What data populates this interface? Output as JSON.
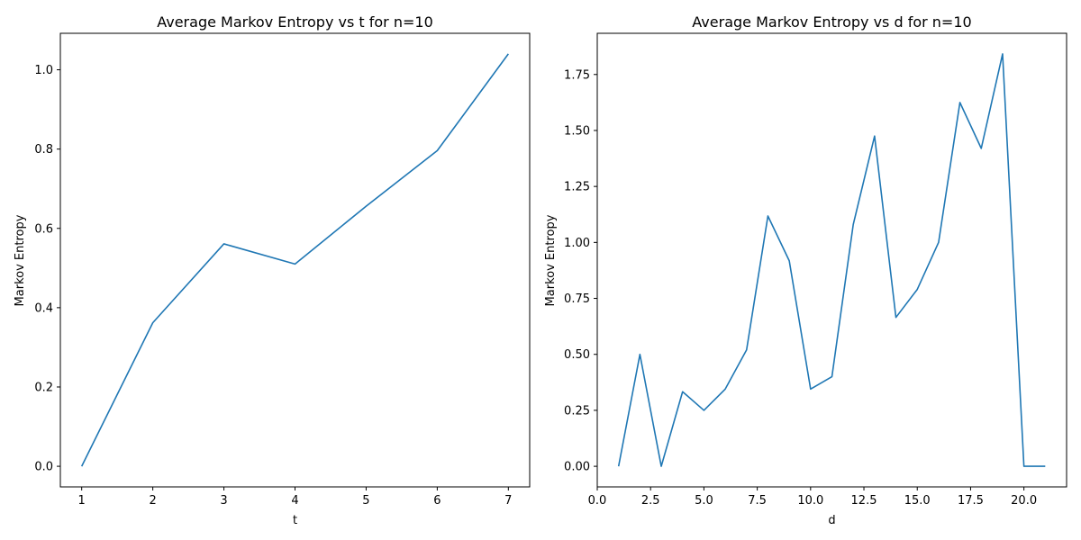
{
  "colors": {
    "series": "#1f77b4",
    "axes": "#000000",
    "background": "#ffffff"
  },
  "chart_data": [
    {
      "type": "line",
      "title": "Average Markov Entropy vs t for n=10",
      "xlabel": "t",
      "ylabel": "Markov Entropy",
      "xlim": [
        0.7,
        7.3
      ],
      "ylim": [
        -0.052,
        1.092
      ],
      "xticks": [
        1,
        2,
        3,
        4,
        5,
        6,
        7
      ],
      "xtick_labels": [
        "1",
        "2",
        "3",
        "4",
        "5",
        "6",
        "7"
      ],
      "yticks": [
        0.0,
        0.2,
        0.4,
        0.6,
        0.8,
        1.0
      ],
      "ytick_labels": [
        "0.0",
        "0.2",
        "0.4",
        "0.6",
        "0.8",
        "1.0"
      ],
      "grid": false,
      "series": [
        {
          "x": [
            1,
            2,
            3,
            4,
            5,
            6,
            7
          ],
          "y": [
            0.0,
            0.362,
            0.561,
            0.51,
            0.656,
            0.796,
            1.04
          ]
        }
      ]
    },
    {
      "type": "line",
      "title": "Average Markov Entropy vs d for n=10",
      "xlabel": "d",
      "ylabel": "Markov Entropy",
      "xlim": [
        0.0,
        22.0
      ],
      "ylim": [
        -0.092,
        1.934
      ],
      "xticks": [
        0,
        2.5,
        5,
        7.5,
        10,
        12.5,
        15,
        17.5,
        20
      ],
      "xtick_labels": [
        "0.0",
        "2.5",
        "5.0",
        "7.5",
        "10.0",
        "12.5",
        "15.0",
        "17.5",
        "20.0"
      ],
      "yticks": [
        0.0,
        0.25,
        0.5,
        0.75,
        1.0,
        1.25,
        1.5,
        1.75
      ],
      "ytick_labels": [
        "0.00",
        "0.25",
        "0.50",
        "0.75",
        "1.00",
        "1.25",
        "1.50",
        "1.75"
      ],
      "grid": false,
      "series": [
        {
          "x": [
            1,
            2,
            3,
            4,
            5,
            6,
            7,
            8,
            9,
            10,
            11,
            12,
            13,
            14,
            15,
            16,
            17,
            18,
            19,
            20,
            21
          ],
          "y": [
            0.0,
            0.5,
            0.0,
            0.333,
            0.25,
            0.345,
            0.52,
            1.118,
            0.918,
            0.345,
            0.4,
            1.08,
            1.475,
            0.665,
            0.79,
            1.0,
            1.625,
            1.42,
            1.842,
            0.0,
            0.0
          ]
        }
      ]
    }
  ]
}
